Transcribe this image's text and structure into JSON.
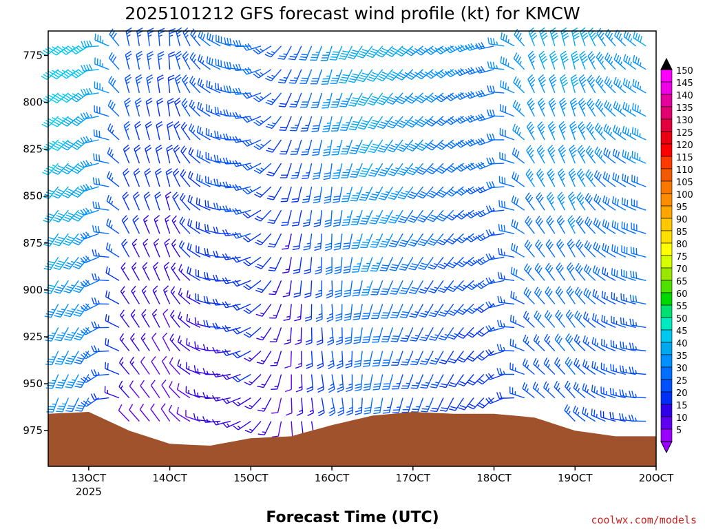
{
  "chart_data": {
    "type": "wind-barb-profile",
    "title": "2025101212 GFS forecast wind profile (kt) for KMCW",
    "xlabel": "Forecast Time (UTC)",
    "ylabel": "",
    "credit": "coolwx.com/models",
    "x_ticks": [
      {
        "day": 13,
        "label": "13OCT",
        "sublabel": "2025"
      },
      {
        "day": 14,
        "label": "14OCT",
        "sublabel": ""
      },
      {
        "day": 15,
        "label": "15OCT",
        "sublabel": ""
      },
      {
        "day": 16,
        "label": "16OCT",
        "sublabel": ""
      },
      {
        "day": 17,
        "label": "17OCT",
        "sublabel": ""
      },
      {
        "day": 18,
        "label": "18OCT",
        "sublabel": ""
      },
      {
        "day": 19,
        "label": "19OCT",
        "sublabel": ""
      },
      {
        "day": 20,
        "label": "20OCT",
        "sublabel": ""
      }
    ],
    "xlim_days": [
      12.5,
      20.0
    ],
    "y_ticks": [
      775,
      800,
      825,
      850,
      875,
      900,
      925,
      950,
      975
    ],
    "ylim_hpa": [
      762,
      994
    ],
    "colorbar": {
      "min": 5,
      "max": 150,
      "step": 5,
      "labels": [
        150,
        145,
        140,
        135,
        130,
        125,
        120,
        115,
        110,
        105,
        100,
        95,
        90,
        85,
        80,
        75,
        70,
        65,
        60,
        55,
        50,
        45,
        40,
        35,
        30,
        25,
        20,
        15,
        10,
        5
      ],
      "colors": [
        "#ff00ff",
        "#f000e6",
        "#e4009a",
        "#e0006e",
        "#e2003c",
        "#e80010",
        "#ff0000",
        "#ff3a00",
        "#f25a00",
        "#fa7800",
        "#ff8c00",
        "#ffa500",
        "#ffc800",
        "#ffe000",
        "#ffff00",
        "#d6ff00",
        "#99e600",
        "#50e000",
        "#00d800",
        "#00e070",
        "#00ecc0",
        "#00c8f0",
        "#00a8f0",
        "#0090ff",
        "#006eff",
        "#0050ff",
        "#0030f8",
        "#3000e8",
        "#6000f0",
        "#9a00ff"
      ]
    },
    "series": [
      {
        "hours": 0,
        "surface_hpa": 966,
        "dir_deg": 210,
        "speed_kt": 40
      },
      {
        "hours": 12,
        "surface_hpa": 965,
        "dir_deg": 220,
        "speed_kt": 36
      },
      {
        "hours": 24,
        "surface_hpa": 975,
        "dir_deg": 330,
        "speed_kt": 18
      },
      {
        "hours": 36,
        "surface_hpa": 982,
        "dir_deg": 340,
        "speed_kt": 15
      },
      {
        "hours": 48,
        "surface_hpa": 983,
        "dir_deg": 290,
        "speed_kt": 20
      },
      {
        "hours": 60,
        "surface_hpa": 979,
        "dir_deg": 250,
        "speed_kt": 22
      },
      {
        "hours": 72,
        "surface_hpa": 978,
        "dir_deg": 190,
        "speed_kt": 16
      },
      {
        "hours": 84,
        "surface_hpa": 972,
        "dir_deg": 180,
        "speed_kt": 28
      },
      {
        "hours": 96,
        "surface_hpa": 967,
        "dir_deg": 200,
        "speed_kt": 34
      },
      {
        "hours": 108,
        "surface_hpa": 965,
        "dir_deg": 210,
        "speed_kt": 30
      },
      {
        "hours": 120,
        "surface_hpa": 966,
        "dir_deg": 220,
        "speed_kt": 26
      },
      {
        "hours": 132,
        "surface_hpa": 966,
        "dir_deg": 240,
        "speed_kt": 24
      },
      {
        "hours": 144,
        "surface_hpa": 968,
        "dir_deg": 320,
        "speed_kt": 30
      },
      {
        "hours": 156,
        "surface_hpa": 975,
        "dir_deg": 330,
        "speed_kt": 32
      },
      {
        "hours": 168,
        "surface_hpa": 978,
        "dir_deg": 300,
        "speed_kt": 28
      },
      {
        "hours": 180,
        "surface_hpa": 978,
        "dir_deg": 280,
        "speed_kt": 30
      }
    ]
  }
}
